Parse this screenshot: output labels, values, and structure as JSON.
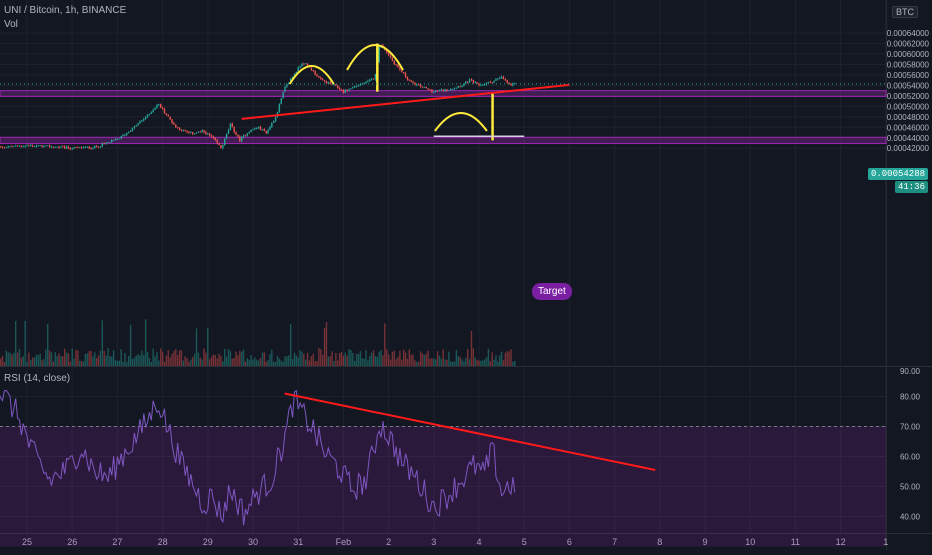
{
  "legend": {
    "symbol": "UNI / Bitcoin, 1h, BINANCE",
    "volume": "Vol",
    "rsi": "RSI (14, close)"
  },
  "currency_badge": "BTC",
  "price_tag": {
    "value": "0.00054288",
    "countdown": "41:36"
  },
  "target_label": "Target",
  "colors": {
    "background": "#131722",
    "up": "#26a69a",
    "down": "#ef5350",
    "zone": "#9c27b0",
    "rsi_line": "#7e57c2",
    "trendline": "#ff1a1a",
    "annotation_yellow": "#ffeb3b"
  },
  "chart_data": [
    {
      "type": "candlestick",
      "title": "UNI / Bitcoin, 1h, BINANCE",
      "x_ticks": [
        "25",
        "26",
        "27",
        "28",
        "29",
        "30",
        "31",
        "Feb",
        "2",
        "3",
        "4",
        "5",
        "6",
        "7",
        "8",
        "9",
        "10",
        "11",
        "12",
        "1"
      ],
      "y_ticks": [
        "0.00064000",
        "0.00062000",
        "0.00060000",
        "0.00058000",
        "0.00056000",
        "0.00054000",
        "0.00052000",
        "0.00050000",
        "0.00048000",
        "0.00046000",
        "0.00044000",
        "0.00042000"
      ],
      "ylim": [
        0.0004,
        0.000659
      ],
      "close_path": [
        [
          24.0,
          0.00042
        ],
        [
          25.0,
          0.000425
        ],
        [
          25.5,
          0.000423
        ],
        [
          26.0,
          0.00042
        ],
        [
          26.5,
          0.000422
        ],
        [
          27.0,
          0.000437
        ],
        [
          27.3,
          0.000455
        ],
        [
          27.7,
          0.000485
        ],
        [
          27.9,
          0.000505
        ],
        [
          28.1,
          0.000482
        ],
        [
          28.3,
          0.00046
        ],
        [
          28.6,
          0.000448
        ],
        [
          28.9,
          0.000452
        ],
        [
          29.1,
          0.00044
        ],
        [
          29.3,
          0.00042
        ],
        [
          29.5,
          0.000465
        ],
        [
          29.7,
          0.000435
        ],
        [
          29.9,
          0.000452
        ],
        [
          30.1,
          0.00046
        ],
        [
          30.3,
          0.00045
        ],
        [
          30.5,
          0.00048
        ],
        [
          30.7,
          0.000535
        ],
        [
          30.9,
          0.00056
        ],
        [
          31.1,
          0.000585
        ],
        [
          31.3,
          0.00057
        ],
        [
          31.5,
          0.00055
        ],
        [
          31.8,
          0.00054
        ],
        [
          32.0,
          0.000528
        ],
        [
          32.3,
          0.00054
        ],
        [
          32.5,
          0.000545
        ],
        [
          32.7,
          0.000555
        ],
        [
          32.8,
          0.00062
        ],
        [
          32.95,
          0.000605
        ],
        [
          33.1,
          0.000585
        ],
        [
          33.3,
          0.000565
        ],
        [
          33.5,
          0.000545
        ],
        [
          33.8,
          0.000535
        ],
        [
          34.0,
          0.000528
        ],
        [
          34.3,
          0.000532
        ],
        [
          34.6,
          0.00054
        ],
        [
          34.8,
          0.00055
        ],
        [
          35.0,
          0.00054
        ],
        [
          35.2,
          0.000545
        ],
        [
          35.5,
          0.000555
        ],
        [
          35.7,
          0.00054
        ],
        [
          35.8,
          0.000543
        ]
      ],
      "zones": [
        {
          "from": 0.000519,
          "to": 0.00053
        },
        {
          "from": 0.000429,
          "to": 0.000441
        }
      ],
      "head_and_shoulders": {
        "shoulders_and_head_x": [
          31.3,
          32.7,
          34.6
        ],
        "neckline": [
          [
            29.75,
            0.000476
          ],
          [
            37.0,
            0.000541
          ]
        ],
        "head_height": {
          "x": 32.75,
          "from": 0.000528,
          "to": 0.00062
        },
        "projection": {
          "x": 35.3,
          "from": 0.000524,
          "to": 0.000435
        }
      },
      "target": {
        "price": 0.000443,
        "x_range": [
          34.0,
          36.0
        ]
      },
      "current_price": 0.00054288
    },
    {
      "type": "line",
      "title": "RSI (14, close)",
      "y_ticks": [
        "90.00",
        "80.00",
        "70.00",
        "60.00",
        "50.00",
        "40.00"
      ],
      "ylim": [
        35,
        90
      ],
      "overbought_band": [
        30,
        70
      ],
      "rsi_path": [
        [
          24.0,
          78
        ],
        [
          24.4,
          82
        ],
        [
          24.8,
          74
        ],
        [
          25.1,
          62
        ],
        [
          25.5,
          52
        ],
        [
          25.9,
          56
        ],
        [
          26.2,
          63
        ],
        [
          26.5,
          55
        ],
        [
          26.8,
          53
        ],
        [
          27.1,
          60
        ],
        [
          27.4,
          66
        ],
        [
          27.7,
          73
        ],
        [
          27.9,
          79
        ],
        [
          28.1,
          70
        ],
        [
          28.4,
          58
        ],
        [
          28.7,
          50
        ],
        [
          28.9,
          44
        ],
        [
          29.1,
          47
        ],
        [
          29.3,
          40
        ],
        [
          29.5,
          49
        ],
        [
          29.8,
          41
        ],
        [
          30.1,
          48
        ],
        [
          30.4,
          52
        ],
        [
          30.7,
          66
        ],
        [
          30.9,
          79
        ],
        [
          31.1,
          74
        ],
        [
          31.3,
          70
        ],
        [
          31.6,
          61
        ],
        [
          31.9,
          56
        ],
        [
          32.2,
          49
        ],
        [
          32.5,
          52
        ],
        [
          32.7,
          64
        ],
        [
          32.8,
          71
        ],
        [
          33.0,
          67
        ],
        [
          33.3,
          58
        ],
        [
          33.6,
          53
        ],
        [
          33.8,
          48
        ],
        [
          34.0,
          43
        ],
        [
          34.3,
          47
        ],
        [
          34.6,
          52
        ],
        [
          34.9,
          57
        ],
        [
          35.1,
          54
        ],
        [
          35.3,
          62
        ],
        [
          35.5,
          48
        ],
        [
          35.7,
          51
        ],
        [
          35.8,
          49.5
        ]
      ],
      "divergence_line": [
        [
          30.7,
          81
        ],
        [
          38.9,
          55.5
        ]
      ]
    }
  ]
}
